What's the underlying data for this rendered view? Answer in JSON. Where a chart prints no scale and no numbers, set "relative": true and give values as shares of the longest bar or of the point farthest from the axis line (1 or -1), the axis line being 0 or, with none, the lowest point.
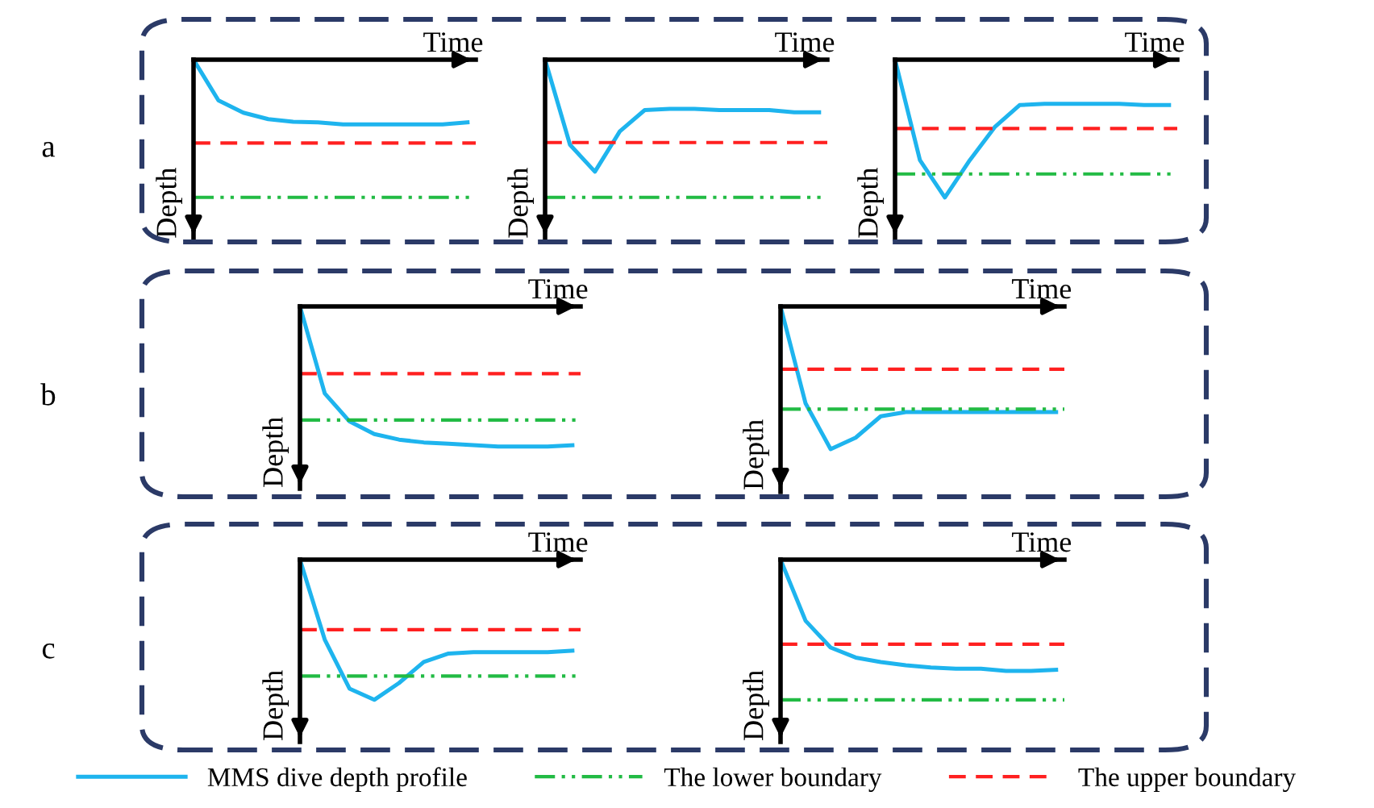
{
  "chart_data": [
    {
      "type": "line",
      "relative": true,
      "xlabel": "Time",
      "ylabel": "Depth",
      "annotations": [
        "a"
      ],
      "legend": "bottom",
      "categories": [
        null,
        null,
        null,
        null,
        null,
        null,
        null,
        null,
        null,
        null,
        null,
        null
      ],
      "series": [
        {
          "name": "MMS dive depth profile",
          "color": "#1eb4ee",
          "values": [
            0,
            -0.63,
            -0.82,
            -0.92,
            -0.96,
            -0.97,
            -1,
            -1,
            -1,
            -1,
            -1,
            -0.97
          ]
        }
      ],
      "ref_lines": [
        {
          "axis": "y",
          "value": -2.13,
          "label": "The lower boundary",
          "color": "#22bb44",
          "line_style": "dashdotdot"
        },
        {
          "axis": "y",
          "value": -1.29,
          "label": "The upper boundary",
          "color": "#ff2020",
          "line_style": "dashed"
        }
      ]
    },
    {
      "type": "line",
      "relative": true,
      "xlabel": "Time",
      "ylabel": "Depth",
      "categories": [
        null,
        null,
        null,
        null,
        null,
        null,
        null,
        null,
        null,
        null,
        null,
        null
      ],
      "series": [
        {
          "color": "#1eb4ee",
          "values": [
            0,
            -0.76,
            -1,
            -0.64,
            -0.45,
            -0.44,
            -0.44,
            -0.45,
            -0.45,
            -0.45,
            -0.47,
            -0.47
          ]
        }
      ],
      "ref_lines": [
        {
          "axis": "y",
          "value": -0.74,
          "color": "#ff2020",
          "line_style": "dashed"
        },
        {
          "axis": "y",
          "value": -1.23,
          "color": "#22bb44",
          "line_style": "dashdotdot"
        }
      ]
    },
    {
      "type": "line",
      "relative": true,
      "xlabel": "Time",
      "ylabel": "Depth",
      "categories": [
        null,
        null,
        null,
        null,
        null,
        null,
        null,
        null,
        null,
        null,
        null,
        null
      ],
      "series": [
        {
          "color": "#1eb4ee",
          "values": [
            0,
            -0.73,
            -1,
            -0.73,
            -0.49,
            -0.33,
            -0.32,
            -0.32,
            -0.32,
            -0.32,
            -0.33,
            -0.33
          ]
        }
      ],
      "ref_lines": [
        {
          "axis": "y",
          "value": -0.5,
          "color": "#ff2020",
          "line_style": "dashed"
        },
        {
          "axis": "y",
          "value": -0.83,
          "color": "#22bb44",
          "line_style": "dashdotdot"
        }
      ]
    },
    {
      "type": "line",
      "relative": true,
      "xlabel": "Time",
      "ylabel": "Depth",
      "annotations": [
        "b"
      ],
      "categories": [
        null,
        null,
        null,
        null,
        null,
        null,
        null,
        null,
        null,
        null,
        null,
        null
      ],
      "series": [
        {
          "color": "#1eb4ee",
          "values": [
            0,
            -0.62,
            -0.82,
            -0.91,
            -0.95,
            -0.97,
            -0.98,
            -0.99,
            -1,
            -1,
            -1,
            -0.99
          ]
        }
      ],
      "ref_lines": [
        {
          "axis": "y",
          "value": -0.48,
          "color": "#ff2020",
          "line_style": "dashed"
        },
        {
          "axis": "y",
          "value": -0.81,
          "color": "#22bb44",
          "line_style": "dashdotdot"
        }
      ]
    },
    {
      "type": "line",
      "relative": true,
      "xlabel": "Time",
      "ylabel": "Depth",
      "categories": [
        null,
        null,
        null,
        null,
        null,
        null,
        null,
        null,
        null,
        null,
        null,
        null
      ],
      "series": [
        {
          "color": "#1eb4ee",
          "values": [
            0,
            -0.68,
            -1,
            -0.92,
            -0.77,
            -0.74,
            -0.74,
            -0.74,
            -0.74,
            -0.74,
            -0.74,
            -0.74
          ]
        }
      ],
      "ref_lines": [
        {
          "axis": "y",
          "value": -0.44,
          "color": "#ff2020",
          "line_style": "dashed"
        },
        {
          "axis": "y",
          "value": -0.72,
          "color": "#22bb44",
          "line_style": "dashdotdot"
        }
      ]
    },
    {
      "type": "line",
      "relative": true,
      "xlabel": "Time",
      "ylabel": "Depth",
      "annotations": [
        "c"
      ],
      "categories": [
        null,
        null,
        null,
        null,
        null,
        null,
        null,
        null,
        null,
        null,
        null,
        null
      ],
      "series": [
        {
          "color": "#1eb4ee",
          "values": [
            0,
            -0.57,
            -0.92,
            -1,
            -0.88,
            -0.73,
            -0.67,
            -0.66,
            -0.66,
            -0.66,
            -0.66,
            -0.65
          ]
        }
      ],
      "ref_lines": [
        {
          "axis": "y",
          "value": -0.5,
          "color": "#ff2020",
          "line_style": "dashed"
        },
        {
          "axis": "y",
          "value": -0.83,
          "color": "#22bb44",
          "line_style": "dashdotdot"
        }
      ]
    },
    {
      "type": "line",
      "relative": true,
      "xlabel": "Time",
      "ylabel": "Depth",
      "categories": [
        null,
        null,
        null,
        null,
        null,
        null,
        null,
        null,
        null,
        null,
        null,
        null
      ],
      "series": [
        {
          "color": "#1eb4ee",
          "values": [
            0,
            -0.55,
            -0.79,
            -0.88,
            -0.92,
            -0.95,
            -0.97,
            -0.98,
            -0.98,
            -1,
            -1,
            -0.99
          ]
        }
      ],
      "ref_lines": [
        {
          "axis": "y",
          "value": -0.76,
          "color": "#ff2020",
          "line_style": "dashed"
        },
        {
          "axis": "y",
          "value": -1.26,
          "color": "#22bb44",
          "line_style": "dashdotdot"
        }
      ]
    }
  ]
}
